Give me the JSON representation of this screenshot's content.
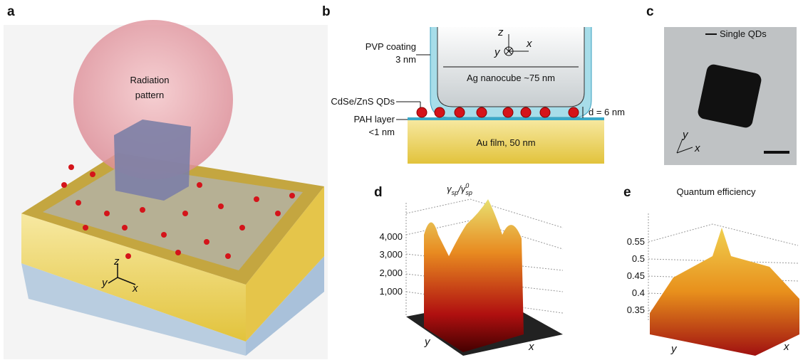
{
  "panel_a": {
    "letter": "a",
    "label_lines": [
      "Radiation",
      "pattern"
    ],
    "axes": [
      "z",
      "y",
      "x"
    ]
  },
  "panel_b": {
    "letter": "b",
    "pvp_lines": [
      "PVP coating",
      "3 nm"
    ],
    "qds": "CdSe/ZnS QDs",
    "pah_lines": [
      "PAH layer",
      "<1 nm"
    ],
    "nanocube": "Ag nanocube ~75 nm",
    "gap": "d = 6 nm",
    "film": "Au film, 50 nm",
    "axes": [
      "z",
      "y",
      "x"
    ]
  },
  "panel_c": {
    "letter": "c",
    "legend": "Single QDs",
    "axes": [
      "y",
      "x"
    ]
  },
  "panel_d": {
    "letter": "d",
    "title_parts": [
      "γ",
      "sp",
      "/γ",
      "0",
      "sp"
    ],
    "ticks": [
      "4,000",
      "3,000",
      "2,000",
      "1,000"
    ],
    "axes": [
      "y",
      "x"
    ]
  },
  "panel_e": {
    "letter": "e",
    "title": "Quantum efficiency",
    "ticks": [
      "0.55",
      "0.5",
      "0.45",
      "0.4",
      "0.35"
    ],
    "axes": [
      "y",
      "x"
    ]
  }
}
